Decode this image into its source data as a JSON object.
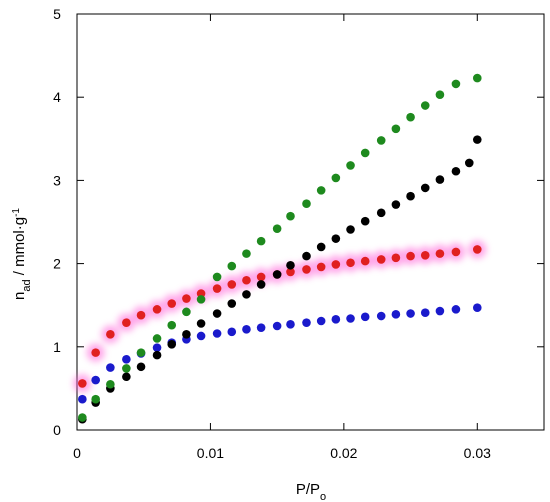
{
  "chart_data": {
    "type": "scatter",
    "title": "",
    "xlabel": "P/P",
    "xlabel_subscript": "o",
    "ylabel_main": "n",
    "ylabel_subscript": "ad",
    "ylabel_units": " / mmol·g",
    "ylabel_superscript": "-1",
    "xlim": [
      0,
      0.035
    ],
    "ylim": [
      0,
      5
    ],
    "xticks": [
      0,
      0.01,
      0.02,
      0.03
    ],
    "xtick_labels": [
      "0",
      "0.01",
      "0.02",
      "0.03"
    ],
    "yticks": [
      0,
      1,
      2,
      3,
      4,
      5
    ],
    "ytick_labels": [
      "0",
      "1",
      "2",
      "3",
      "4",
      "5"
    ],
    "grid": false,
    "legend": "none",
    "series": [
      {
        "color": "#e02020",
        "glow": true,
        "points": [
          [
            0.0004,
            0.56
          ],
          [
            0.0014,
            0.93
          ],
          [
            0.0025,
            1.15
          ],
          [
            0.0037,
            1.29
          ],
          [
            0.0048,
            1.38
          ],
          [
            0.006,
            1.45
          ],
          [
            0.0071,
            1.52
          ],
          [
            0.0082,
            1.58
          ],
          [
            0.0093,
            1.64
          ],
          [
            0.0105,
            1.7
          ],
          [
            0.0116,
            1.75
          ],
          [
            0.0127,
            1.8
          ],
          [
            0.0138,
            1.84
          ],
          [
            0.015,
            1.87
          ],
          [
            0.016,
            1.9
          ],
          [
            0.0172,
            1.93
          ],
          [
            0.0183,
            1.96
          ],
          [
            0.0194,
            1.99
          ],
          [
            0.0205,
            2.01
          ],
          [
            0.0216,
            2.03
          ],
          [
            0.0228,
            2.05
          ],
          [
            0.0239,
            2.07
          ],
          [
            0.025,
            2.09
          ],
          [
            0.0261,
            2.1
          ],
          [
            0.0272,
            2.12
          ],
          [
            0.0284,
            2.14
          ],
          [
            0.03,
            2.17
          ]
        ]
      },
      {
        "color": "#1a1acc",
        "glow": false,
        "points": [
          [
            0.0004,
            0.37
          ],
          [
            0.0014,
            0.6
          ],
          [
            0.0025,
            0.75
          ],
          [
            0.0037,
            0.85
          ],
          [
            0.0048,
            0.92
          ],
          [
            0.006,
            0.99
          ],
          [
            0.0071,
            1.05
          ],
          [
            0.0082,
            1.09
          ],
          [
            0.0093,
            1.13
          ],
          [
            0.0105,
            1.16
          ],
          [
            0.0116,
            1.18
          ],
          [
            0.0127,
            1.21
          ],
          [
            0.0138,
            1.23
          ],
          [
            0.015,
            1.25
          ],
          [
            0.016,
            1.27
          ],
          [
            0.0172,
            1.29
          ],
          [
            0.0183,
            1.31
          ],
          [
            0.0194,
            1.33
          ],
          [
            0.0205,
            1.34
          ],
          [
            0.0216,
            1.36
          ],
          [
            0.0228,
            1.37
          ],
          [
            0.0239,
            1.39
          ],
          [
            0.025,
            1.4
          ],
          [
            0.0261,
            1.41
          ],
          [
            0.0272,
            1.43
          ],
          [
            0.0284,
            1.45
          ],
          [
            0.03,
            1.47
          ]
        ]
      },
      {
        "color": "#000000",
        "glow": false,
        "points": [
          [
            0.0004,
            0.13
          ],
          [
            0.0014,
            0.33
          ],
          [
            0.0025,
            0.5
          ],
          [
            0.0037,
            0.64
          ],
          [
            0.0048,
            0.76
          ],
          [
            0.006,
            0.9
          ],
          [
            0.0071,
            1.03
          ],
          [
            0.0082,
            1.15
          ],
          [
            0.0093,
            1.28
          ],
          [
            0.0105,
            1.4
          ],
          [
            0.0116,
            1.52
          ],
          [
            0.0127,
            1.63
          ],
          [
            0.0138,
            1.75
          ],
          [
            0.015,
            1.87
          ],
          [
            0.016,
            1.98
          ],
          [
            0.0172,
            2.09
          ],
          [
            0.0183,
            2.2
          ],
          [
            0.0194,
            2.3
          ],
          [
            0.0205,
            2.41
          ],
          [
            0.0216,
            2.51
          ],
          [
            0.0228,
            2.61
          ],
          [
            0.0239,
            2.71
          ],
          [
            0.025,
            2.81
          ],
          [
            0.0261,
            2.91
          ],
          [
            0.0272,
            3.01
          ],
          [
            0.0284,
            3.11
          ],
          [
            0.0294,
            3.21
          ],
          [
            0.03,
            3.49
          ]
        ]
      },
      {
        "color": "#1e8a1e",
        "glow": false,
        "points": [
          [
            0.0004,
            0.15
          ],
          [
            0.0014,
            0.37
          ],
          [
            0.0025,
            0.55
          ],
          [
            0.0037,
            0.74
          ],
          [
            0.0048,
            0.93
          ],
          [
            0.006,
            1.1
          ],
          [
            0.0071,
            1.26
          ],
          [
            0.0082,
            1.42
          ],
          [
            0.0093,
            1.57
          ],
          [
            0.0105,
            1.84
          ],
          [
            0.0116,
            1.97
          ],
          [
            0.0127,
            2.12
          ],
          [
            0.0138,
            2.27
          ],
          [
            0.015,
            2.42
          ],
          [
            0.016,
            2.57
          ],
          [
            0.0172,
            2.72
          ],
          [
            0.0183,
            2.88
          ],
          [
            0.0194,
            3.03
          ],
          [
            0.0205,
            3.18
          ],
          [
            0.0216,
            3.33
          ],
          [
            0.0228,
            3.48
          ],
          [
            0.0239,
            3.62
          ],
          [
            0.025,
            3.76
          ],
          [
            0.0261,
            3.9
          ],
          [
            0.0272,
            4.03
          ],
          [
            0.0284,
            4.16
          ],
          [
            0.03,
            4.23
          ]
        ]
      }
    ]
  }
}
